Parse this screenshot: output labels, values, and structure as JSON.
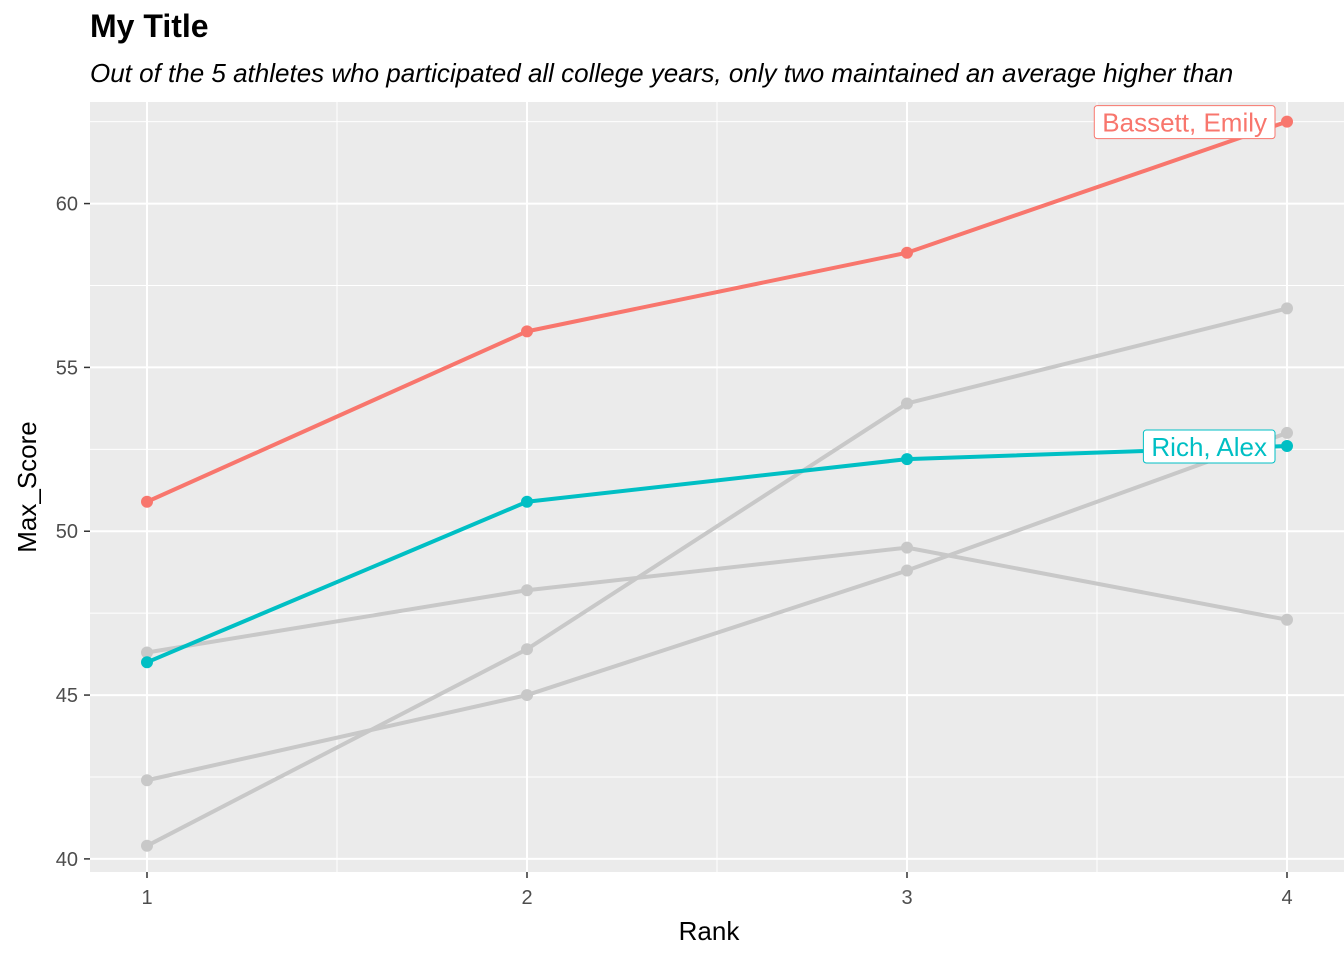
{
  "chart_data": {
    "type": "line",
    "title": "My Title",
    "subtitle": "Out of the 5 athletes who participated all college years, only two maintained an average higher than",
    "xlabel": "Rank",
    "ylabel": "Max_Score",
    "x": [
      1,
      2,
      3,
      4
    ],
    "xlim": [
      0.85,
      4.15
    ],
    "ylim": [
      39.6,
      63.1
    ],
    "x_ticks": [
      1,
      2,
      3,
      4
    ],
    "y_ticks": [
      40,
      45,
      50,
      55,
      60
    ],
    "grid": true,
    "panel_background": "#ebebeb",
    "series": [
      {
        "values": [
          42.4,
          45.0,
          48.8,
          53.0
        ],
        "color": "#c8c8c8",
        "highlight": false
      },
      {
        "values": [
          40.4,
          46.4,
          53.9,
          56.8
        ],
        "color": "#c8c8c8",
        "highlight": false
      },
      {
        "values": [
          46.3,
          48.2,
          49.5,
          47.3
        ],
        "color": "#c8c8c8",
        "highlight": false
      },
      {
        "name": "Bassett, Emily",
        "values": [
          50.9,
          56.1,
          58.5,
          62.5
        ],
        "color": "#f8766d",
        "highlight": true
      },
      {
        "name": "Rich, Alex",
        "values": [
          46.0,
          50.9,
          52.2,
          52.6
        ],
        "color": "#00bfc4",
        "highlight": true
      }
    ]
  }
}
